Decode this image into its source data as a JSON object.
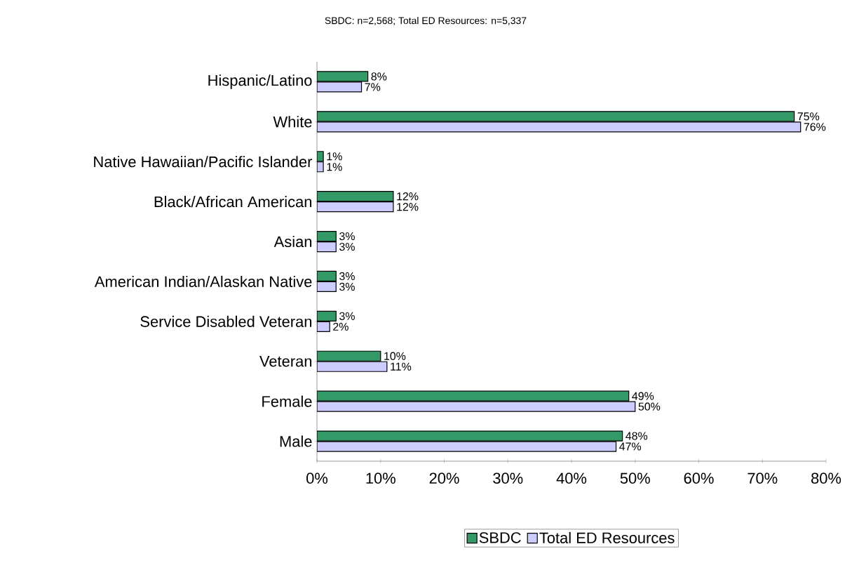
{
  "chart_data": {
    "type": "bar",
    "orientation": "horizontal",
    "title": "SBDC: n=2,568;  Total ED Resources: n=5,337",
    "categories": [
      "Hispanic/Latino",
      "White",
      "Native Hawaiian/Pacific Islander",
      "Black/African American",
      "Asian",
      "American Indian/Alaskan Native",
      "Service Disabled Veteran",
      "Veteran",
      "Female",
      "Male"
    ],
    "series": [
      {
        "name": "SBDC",
        "color": "#339966",
        "values": [
          8,
          75,
          1,
          12,
          3,
          3,
          3,
          10,
          49,
          48
        ],
        "value_labels": [
          "8%",
          "75%",
          "1%",
          "12%",
          "3%",
          "3%",
          "3%",
          "10%",
          "49%",
          "48%"
        ]
      },
      {
        "name": "Total ED Resources",
        "color": "#ccccff",
        "values": [
          7,
          76,
          1,
          12,
          3,
          3,
          2,
          11,
          50,
          47
        ],
        "value_labels": [
          "7%",
          "76%",
          "1%",
          "12%",
          "3%",
          "3%",
          "2%",
          "11%",
          "50%",
          "47%"
        ]
      }
    ],
    "xlim": [
      0,
      80
    ],
    "xticks": [
      {
        "value": 0,
        "label": "0%"
      },
      {
        "value": 10,
        "label": "10%"
      },
      {
        "value": 20,
        "label": "20%"
      },
      {
        "value": 30,
        "label": "30%"
      },
      {
        "value": 40,
        "label": "40%"
      },
      {
        "value": 50,
        "label": "50%"
      },
      {
        "value": 60,
        "label": "60%"
      },
      {
        "value": 70,
        "label": "70%"
      },
      {
        "value": 80,
        "label": "80%"
      }
    ],
    "grid": false,
    "legend": "bottom"
  }
}
